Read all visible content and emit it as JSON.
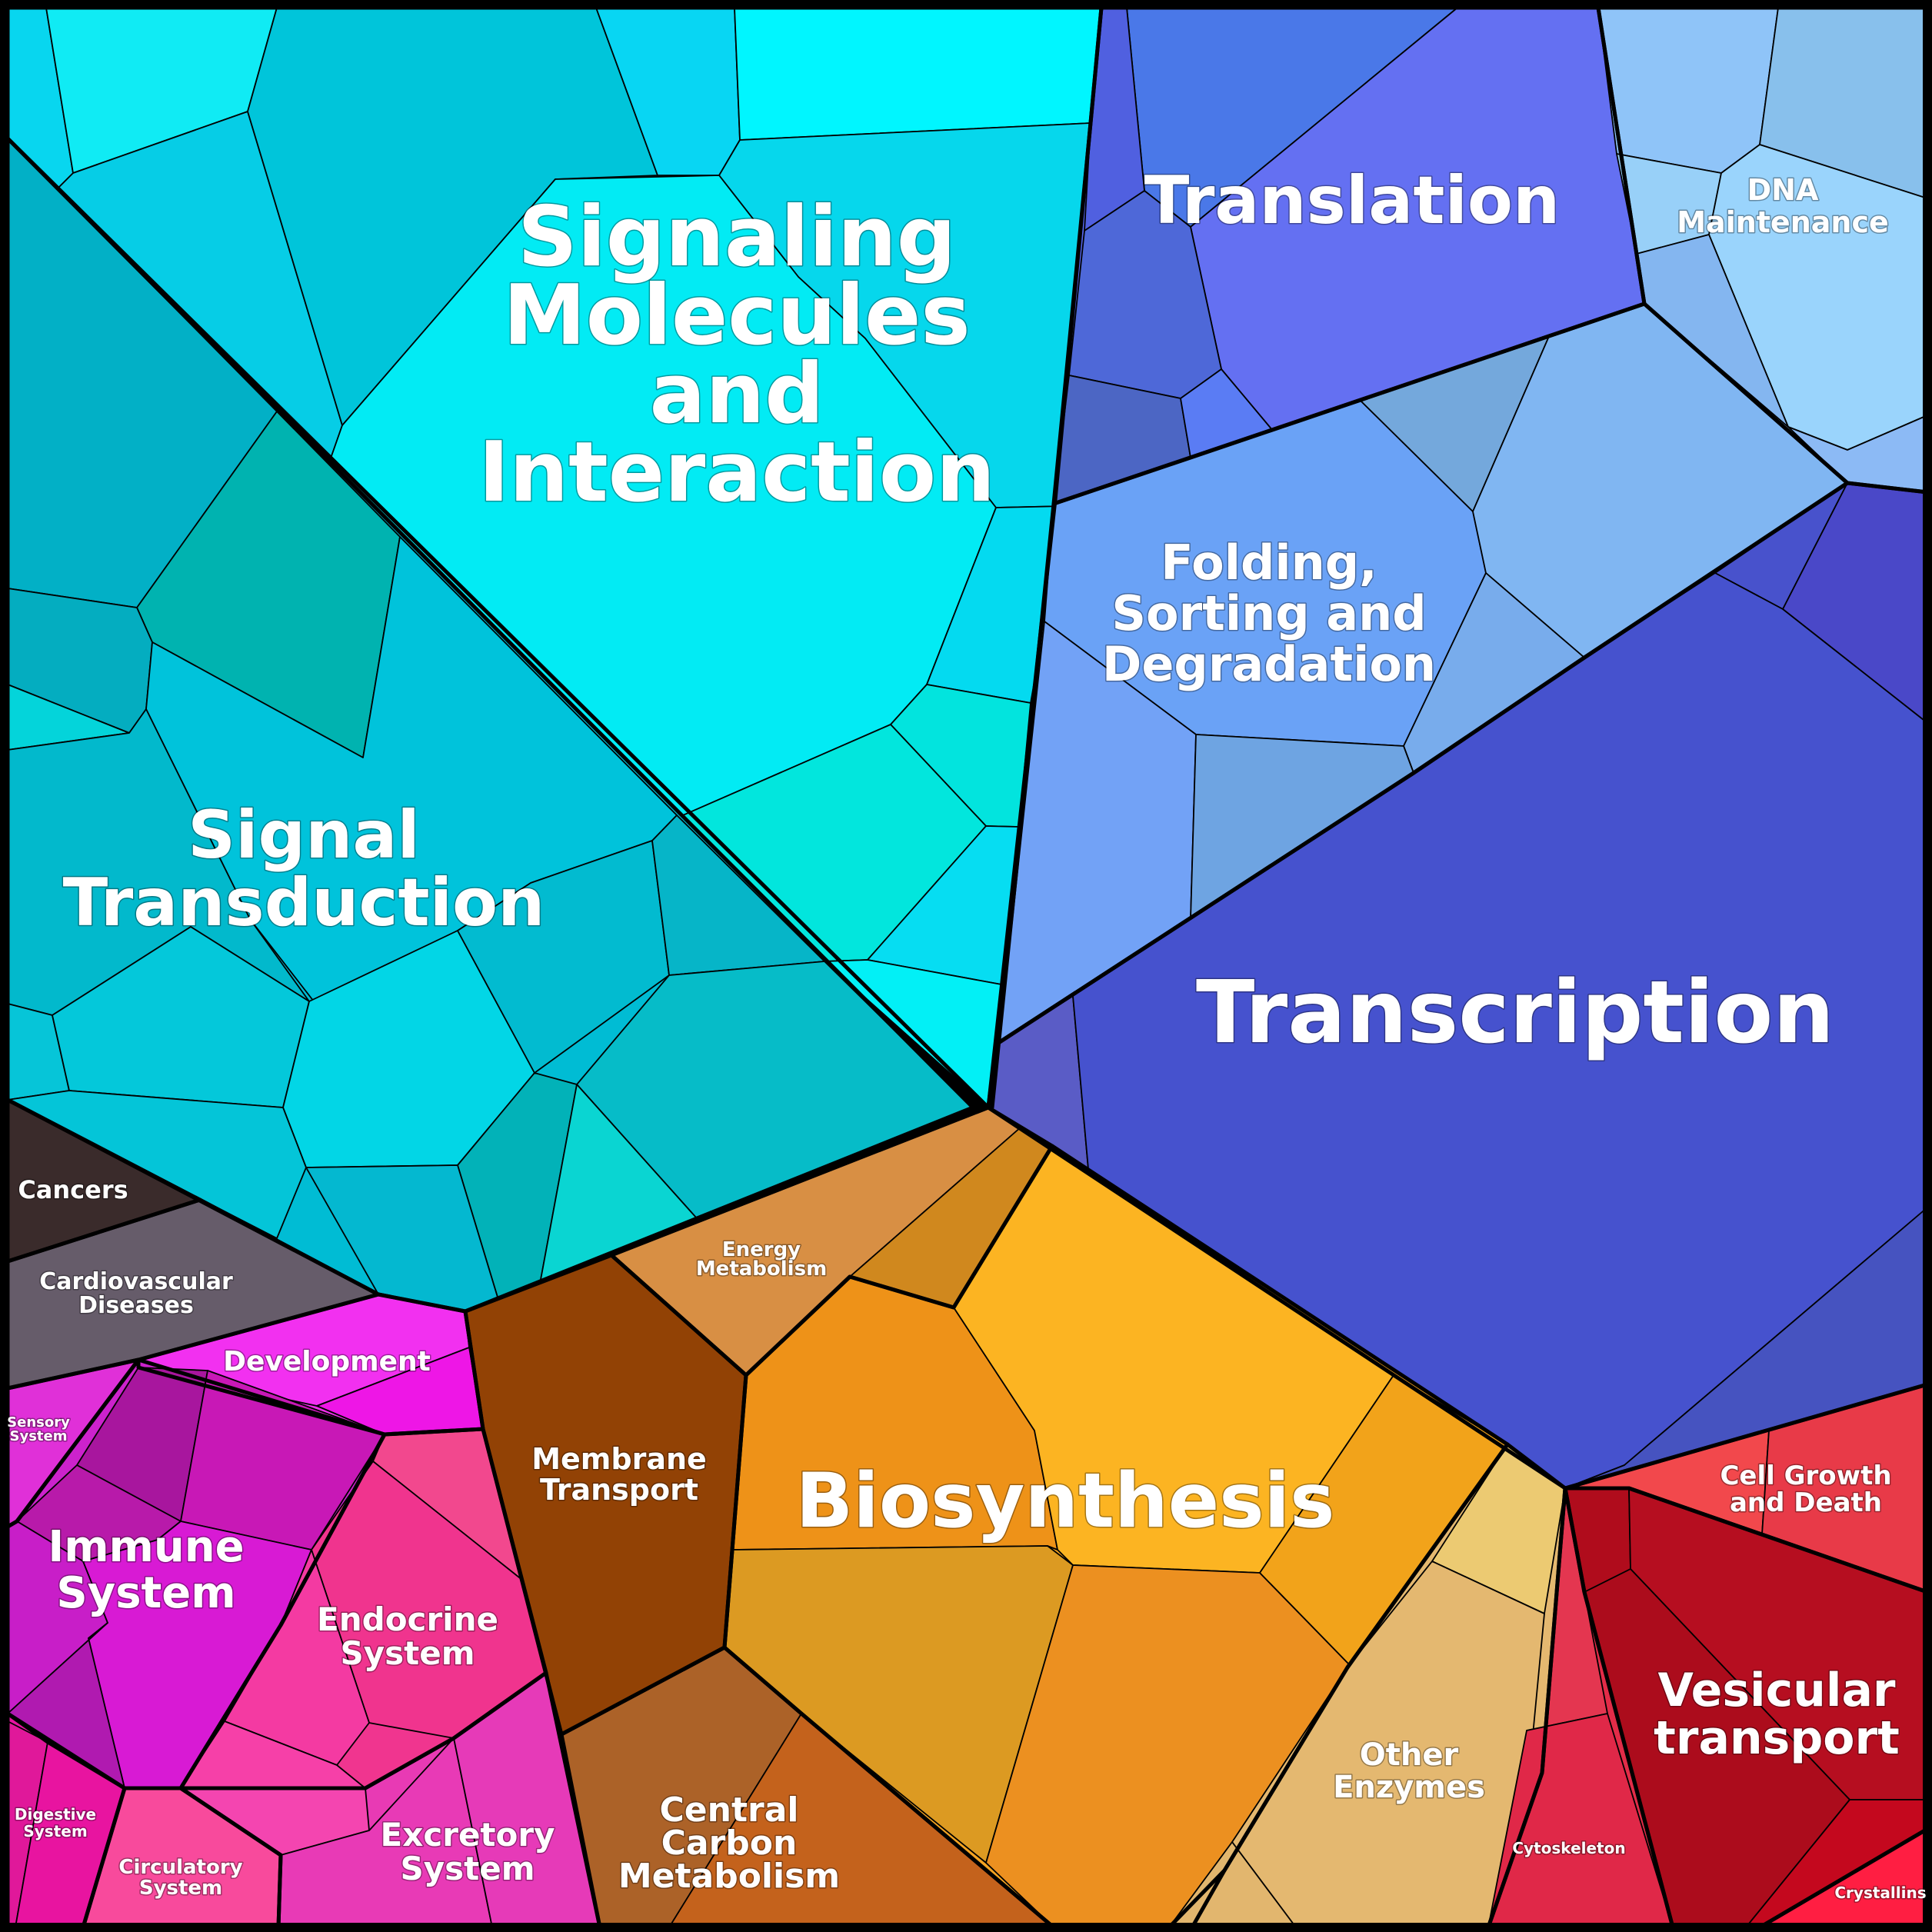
{
  "regions": [
    {
      "id": "signaling-molecules",
      "label": [
        "Signaling",
        "Molecules",
        "and",
        "Interaction"
      ],
      "color": "#00e5f0"
    },
    {
      "id": "signal-transduction",
      "label": [
        "Signal",
        "Transduction"
      ],
      "color": "#00bcd4"
    },
    {
      "id": "translation",
      "label": [
        "Translation"
      ],
      "color": "#5566ee"
    },
    {
      "id": "dna-maintenance",
      "label": [
        "DNA",
        "Maintenance"
      ],
      "color": "#8fc8f5"
    },
    {
      "id": "folding-sorting-degradation",
      "label": [
        "Folding,",
        "Sorting and",
        "Degradation"
      ],
      "color": "#6fa6f2"
    },
    {
      "id": "transcription",
      "label": [
        "Transcription"
      ],
      "color": "#4652cc"
    },
    {
      "id": "cancers",
      "label": [
        "Cancers"
      ],
      "color": "#3a2b2b"
    },
    {
      "id": "cardiovascular-diseases",
      "label": [
        "Cardiovascular",
        "Diseases"
      ],
      "color": "#665c6a"
    },
    {
      "id": "development",
      "label": [
        "Development"
      ],
      "color": "#ee2ee8"
    },
    {
      "id": "sensory-system",
      "label": [
        "Sensory",
        "System"
      ],
      "color": "#e030d8"
    },
    {
      "id": "immune-system",
      "label": [
        "Immune",
        "System"
      ],
      "color": "#cc22cc"
    },
    {
      "id": "endocrine-system",
      "label": [
        "Endocrine",
        "System"
      ],
      "color": "#f0358f"
    },
    {
      "id": "digestive-system",
      "label": [
        "Digestive",
        "System"
      ],
      "color": "#e614a0"
    },
    {
      "id": "circulatory-system",
      "label": [
        "Circulatory",
        "System"
      ],
      "color": "#f74a9a"
    },
    {
      "id": "excretory-system",
      "label": [
        "Excretory",
        "System"
      ],
      "color": "#e83ab4"
    },
    {
      "id": "membrane-transport",
      "label": [
        "Membrane",
        "Transport"
      ],
      "color": "#924205"
    },
    {
      "id": "energy-metabolism",
      "label": [
        "Energy",
        "Metabolism"
      ],
      "color": "#d88f44"
    },
    {
      "id": "biosynthesis",
      "label": [
        "Biosynthesis"
      ],
      "color": "#f4a322"
    },
    {
      "id": "central-carbon-metabolism",
      "label": [
        "Central",
        "Carbon",
        "Metabolism"
      ],
      "color": "#b4622a"
    },
    {
      "id": "other-enzymes",
      "label": [
        "Other",
        "Enzymes"
      ],
      "color": "#e4b870"
    },
    {
      "id": "cell-growth-and-death",
      "label": [
        "Cell Growth",
        "and Death"
      ],
      "color": "#ec4448"
    },
    {
      "id": "vesicular-transport",
      "label": [
        "Vesicular",
        "transport"
      ],
      "color": "#b00c1c"
    },
    {
      "id": "cytoskeleton",
      "label": [
        "Cytoskeleton"
      ],
      "color": "#e22c48"
    },
    {
      "id": "crystallins",
      "label": [
        "Crystallins"
      ],
      "color": "#ff1e42"
    }
  ]
}
